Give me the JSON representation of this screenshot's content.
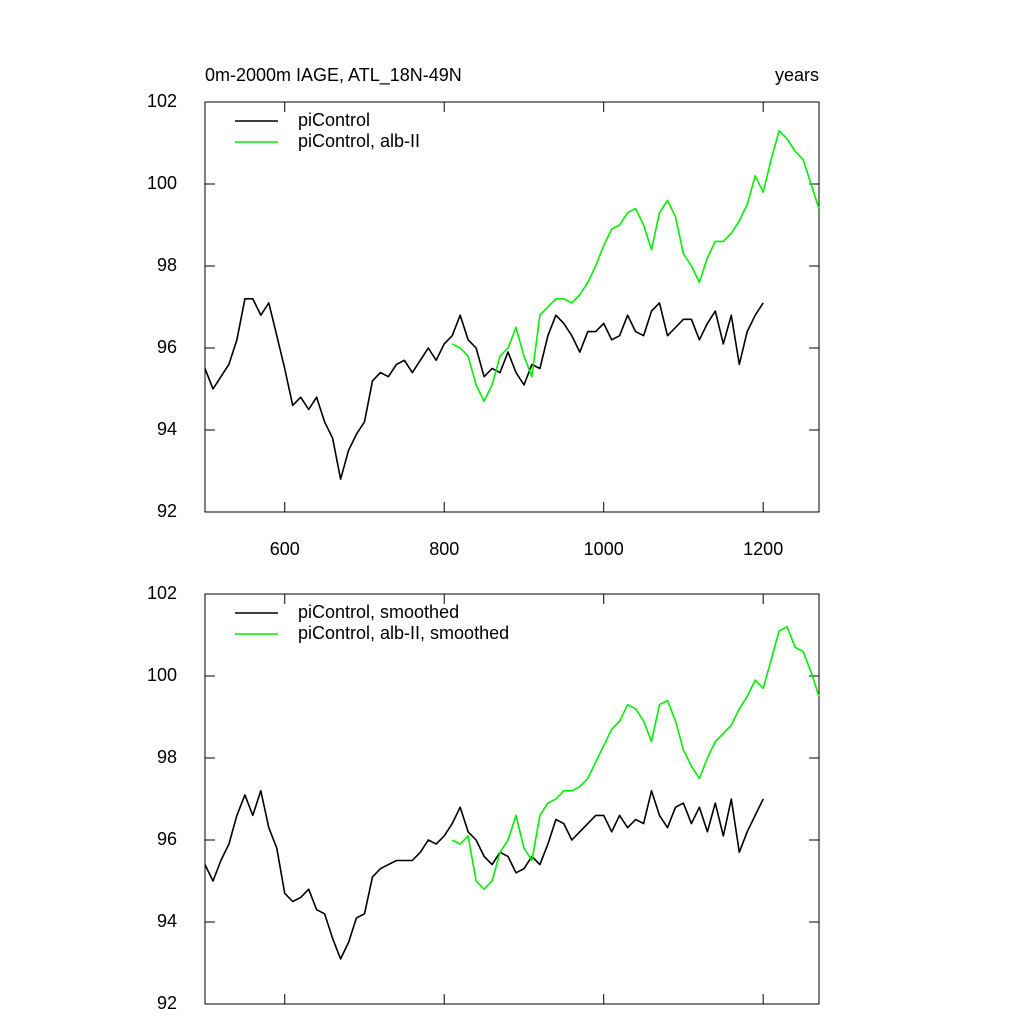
{
  "chart_data": [
    {
      "type": "line",
      "title": "0m-2000m IAGE, ATL_18N-49N",
      "right_title": "years",
      "xlim": [
        500,
        1270
      ],
      "ylim": [
        92,
        102
      ],
      "xticks": [
        600,
        800,
        1000,
        1200
      ],
      "yticks": [
        92,
        94,
        96,
        98,
        100,
        102
      ],
      "xtick_labels": true,
      "legend": "upper left",
      "series": [
        {
          "name": "piControl",
          "color": "#000000",
          "x": [
            500,
            510,
            520,
            530,
            540,
            550,
            560,
            570,
            580,
            590,
            600,
            610,
            620,
            630,
            640,
            650,
            660,
            670,
            680,
            690,
            700,
            710,
            720,
            730,
            740,
            750,
            760,
            770,
            780,
            790,
            800,
            810,
            820,
            830,
            840,
            850,
            860,
            870,
            880,
            890,
            900,
            910,
            920,
            930,
            940,
            950,
            960,
            970,
            980,
            990,
            1000,
            1010,
            1020,
            1030,
            1040,
            1050,
            1060,
            1070,
            1080,
            1090,
            1100,
            1110,
            1120,
            1130,
            1140,
            1150,
            1160,
            1170,
            1180,
            1190,
            1200
          ],
          "values": [
            95.5,
            95.0,
            95.3,
            95.6,
            96.2,
            97.2,
            97.2,
            96.8,
            97.1,
            96.3,
            95.5,
            94.6,
            94.8,
            94.5,
            94.8,
            94.2,
            93.8,
            92.8,
            93.5,
            93.9,
            94.2,
            95.2,
            95.4,
            95.3,
            95.6,
            95.7,
            95.4,
            95.7,
            96.0,
            95.7,
            96.1,
            96.3,
            96.8,
            96.2,
            96.0,
            95.3,
            95.5,
            95.4,
            95.9,
            95.4,
            95.1,
            95.6,
            95.5,
            96.3,
            96.8,
            96.6,
            96.3,
            95.9,
            96.4,
            96.4,
            96.6,
            96.2,
            96.3,
            96.8,
            96.4,
            96.3,
            96.9,
            97.1,
            96.3,
            96.5,
            96.7,
            96.7,
            96.2,
            96.6,
            96.9,
            96.1,
            96.8,
            95.6,
            96.4,
            96.8,
            97.1
          ]
        },
        {
          "name": "piControl, alb-II",
          "color": "#00ee00",
          "x": [
            810,
            820,
            830,
            840,
            850,
            860,
            870,
            880,
            890,
            900,
            910,
            920,
            930,
            940,
            950,
            960,
            970,
            980,
            990,
            1000,
            1010,
            1020,
            1030,
            1040,
            1050,
            1060,
            1070,
            1080,
            1090,
            1100,
            1110,
            1120,
            1130,
            1140,
            1150,
            1160,
            1170,
            1180,
            1190,
            1200,
            1210,
            1220,
            1230,
            1240,
            1250,
            1260,
            1270
          ],
          "values": [
            96.1,
            96.0,
            95.8,
            95.1,
            94.7,
            95.1,
            95.8,
            96.0,
            96.5,
            95.8,
            95.3,
            96.8,
            97.0,
            97.2,
            97.2,
            97.1,
            97.3,
            97.6,
            98.0,
            98.5,
            98.9,
            99.0,
            99.3,
            99.4,
            99.0,
            98.4,
            99.3,
            99.6,
            99.2,
            98.3,
            98.0,
            97.6,
            98.2,
            98.6,
            98.6,
            98.8,
            99.1,
            99.5,
            100.2,
            99.8,
            100.6,
            101.3,
            101.1,
            100.8,
            100.6,
            100.0,
            99.4
          ]
        }
      ]
    },
    {
      "type": "line",
      "xlim": [
        500,
        1270
      ],
      "ylim": [
        92,
        102
      ],
      "xticks": [
        600,
        800,
        1000,
        1200
      ],
      "yticks": [
        92,
        94,
        96,
        98,
        100,
        102
      ],
      "xtick_labels": false,
      "legend": "upper left",
      "series": [
        {
          "name": "piControl, smoothed",
          "color": "#000000",
          "x": [
            500,
            510,
            520,
            530,
            540,
            550,
            560,
            570,
            580,
            590,
            600,
            610,
            620,
            630,
            640,
            650,
            660,
            670,
            680,
            690,
            700,
            710,
            720,
            730,
            740,
            750,
            760,
            770,
            780,
            790,
            800,
            810,
            820,
            830,
            840,
            850,
            860,
            870,
            880,
            890,
            900,
            910,
            920,
            930,
            940,
            950,
            960,
            970,
            980,
            990,
            1000,
            1010,
            1020,
            1030,
            1040,
            1050,
            1060,
            1070,
            1080,
            1090,
            1100,
            1110,
            1120,
            1130,
            1140,
            1150,
            1160,
            1170,
            1180,
            1190,
            1200
          ],
          "values": [
            95.4,
            95.0,
            95.5,
            95.9,
            96.6,
            97.1,
            96.6,
            97.2,
            96.3,
            95.8,
            94.7,
            94.5,
            94.6,
            94.8,
            94.3,
            94.2,
            93.6,
            93.1,
            93.5,
            94.1,
            94.2,
            95.1,
            95.3,
            95.4,
            95.5,
            95.5,
            95.5,
            95.7,
            96.0,
            95.9,
            96.1,
            96.4,
            96.8,
            96.2,
            96.0,
            95.6,
            95.4,
            95.7,
            95.6,
            95.2,
            95.3,
            95.6,
            95.4,
            95.9,
            96.5,
            96.4,
            96.0,
            96.2,
            96.4,
            96.6,
            96.6,
            96.2,
            96.6,
            96.3,
            96.5,
            96.4,
            97.2,
            96.6,
            96.3,
            96.8,
            96.9,
            96.4,
            96.8,
            96.2,
            96.9,
            96.1,
            97.0,
            95.7,
            96.2,
            96.6,
            97.0
          ]
        },
        {
          "name": "piControl, alb-II, smoothed",
          "color": "#00ee00",
          "x": [
            810,
            820,
            830,
            840,
            850,
            860,
            870,
            880,
            890,
            900,
            910,
            920,
            930,
            940,
            950,
            960,
            970,
            980,
            990,
            1000,
            1010,
            1020,
            1030,
            1040,
            1050,
            1060,
            1070,
            1080,
            1090,
            1100,
            1110,
            1120,
            1130,
            1140,
            1150,
            1160,
            1170,
            1180,
            1190,
            1200,
            1210,
            1220,
            1230,
            1240,
            1250,
            1260,
            1270
          ],
          "values": [
            96.0,
            95.9,
            96.1,
            95.0,
            94.8,
            95.0,
            95.7,
            96.0,
            96.6,
            95.8,
            95.5,
            96.6,
            96.9,
            97.0,
            97.2,
            97.2,
            97.3,
            97.5,
            97.9,
            98.3,
            98.7,
            98.9,
            99.3,
            99.2,
            98.9,
            98.4,
            99.3,
            99.4,
            98.9,
            98.2,
            97.8,
            97.5,
            98.0,
            98.4,
            98.6,
            98.8,
            99.2,
            99.5,
            99.9,
            99.7,
            100.4,
            101.1,
            101.2,
            100.7,
            100.6,
            100.1,
            99.5
          ]
        }
      ]
    }
  ]
}
